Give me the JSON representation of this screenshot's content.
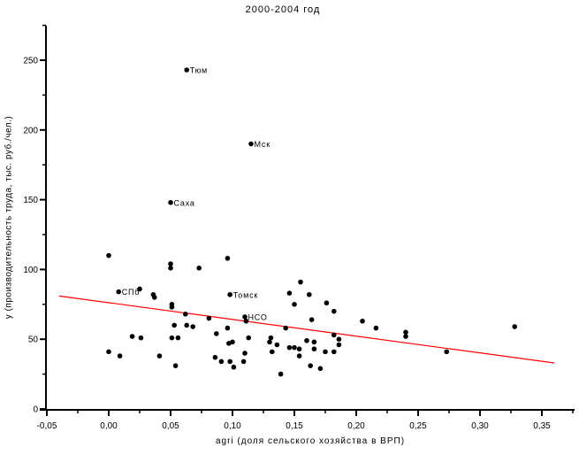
{
  "title": "2000-2004 год",
  "colors": {
    "background": "#ffffff",
    "point": "#000000",
    "axis": "#000000",
    "trend_line": "#ff0000",
    "text": "#000000"
  },
  "axes": {
    "x": {
      "label": "agri (доля сельского хозяйства в ВРП)",
      "min": -0.055,
      "max": 0.377,
      "major_ticks": [
        -0.05,
        0.0,
        0.05,
        0.1,
        0.15,
        0.2,
        0.25,
        0.3,
        0.35
      ],
      "major_tick_labels": [
        "-0,05",
        "0,00",
        "0,05",
        "0,10",
        "0,15",
        "0,20",
        "0,25",
        "0,30",
        "0,35"
      ],
      "minor_ticks": [
        -0.025,
        0.025,
        0.075,
        0.125,
        0.175,
        0.225,
        0.275,
        0.325,
        0.375
      ]
    },
    "y": {
      "label": "у (производительность труда, тыс. руб./чел.)",
      "min": 0,
      "max": 275,
      "major_ticks": [
        0,
        50,
        100,
        150,
        200,
        250
      ],
      "major_tick_labels": [
        "0",
        "50",
        "100",
        "150",
        "200",
        "250"
      ],
      "minor_ticks": [
        25,
        75,
        125,
        175,
        225,
        275
      ]
    }
  },
  "chart_data": {
    "type": "scatter",
    "title": "2000-2004 год",
    "xlabel": "agri (доля сельского хозяйства в ВРП)",
    "ylabel": "у (производительность труда, тыс. руб./чел.)",
    "xlim": [
      -0.055,
      0.377
    ],
    "ylim": [
      0,
      275
    ],
    "grid": false,
    "legend": false,
    "trend_line": {
      "x1": -0.04,
      "y1": 81,
      "x2": 0.36,
      "y2": 33,
      "color": "#ff0000"
    },
    "points": [
      {
        "x": 0.063,
        "y": 243,
        "label": "Тюм"
      },
      {
        "x": 0.115,
        "y": 190,
        "label": "Мск"
      },
      {
        "x": 0.05,
        "y": 148,
        "label": "Саха"
      },
      {
        "x": 0.008,
        "y": 84,
        "label": "СПб"
      },
      {
        "x": 0.098,
        "y": 82,
        "label": "Томск"
      },
      {
        "x": 0.11,
        "y": 66,
        "label": "НСО"
      },
      {
        "x": 0.0,
        "y": 110
      },
      {
        "x": 0.05,
        "y": 104
      },
      {
        "x": 0.05,
        "y": 101
      },
      {
        "x": 0.073,
        "y": 101
      },
      {
        "x": 0.096,
        "y": 108
      },
      {
        "x": 0.025,
        "y": 86
      },
      {
        "x": 0.036,
        "y": 82
      },
      {
        "x": 0.037,
        "y": 80
      },
      {
        "x": 0.051,
        "y": 75
      },
      {
        "x": 0.051,
        "y": 73
      },
      {
        "x": 0.062,
        "y": 68
      },
      {
        "x": 0.081,
        "y": 65
      },
      {
        "x": 0.155,
        "y": 91
      },
      {
        "x": 0.146,
        "y": 83
      },
      {
        "x": 0.162,
        "y": 82
      },
      {
        "x": 0.15,
        "y": 75
      },
      {
        "x": 0.176,
        "y": 76
      },
      {
        "x": 0.182,
        "y": 70
      },
      {
        "x": 0.111,
        "y": 63
      },
      {
        "x": 0.205,
        "y": 63
      },
      {
        "x": 0.216,
        "y": 58
      },
      {
        "x": 0.164,
        "y": 64
      },
      {
        "x": 0.143,
        "y": 58
      },
      {
        "x": 0.053,
        "y": 60
      },
      {
        "x": 0.063,
        "y": 60
      },
      {
        "x": 0.068,
        "y": 59
      },
      {
        "x": 0.019,
        "y": 52
      },
      {
        "x": 0.026,
        "y": 51
      },
      {
        "x": 0.051,
        "y": 51
      },
      {
        "x": 0.056,
        "y": 51
      },
      {
        "x": 0.0,
        "y": 41
      },
      {
        "x": 0.009,
        "y": 38
      },
      {
        "x": 0.041,
        "y": 38
      },
      {
        "x": 0.054,
        "y": 31
      },
      {
        "x": 0.086,
        "y": 37
      },
      {
        "x": 0.087,
        "y": 54
      },
      {
        "x": 0.096,
        "y": 58
      },
      {
        "x": 0.097,
        "y": 47
      },
      {
        "x": 0.1,
        "y": 48
      },
      {
        "x": 0.091,
        "y": 34
      },
      {
        "x": 0.098,
        "y": 34
      },
      {
        "x": 0.101,
        "y": 30
      },
      {
        "x": 0.109,
        "y": 34
      },
      {
        "x": 0.11,
        "y": 40
      },
      {
        "x": 0.113,
        "y": 51
      },
      {
        "x": 0.131,
        "y": 51
      },
      {
        "x": 0.13,
        "y": 48
      },
      {
        "x": 0.136,
        "y": 46
      },
      {
        "x": 0.132,
        "y": 41
      },
      {
        "x": 0.146,
        "y": 44
      },
      {
        "x": 0.15,
        "y": 44
      },
      {
        "x": 0.154,
        "y": 43
      },
      {
        "x": 0.154,
        "y": 38
      },
      {
        "x": 0.16,
        "y": 49
      },
      {
        "x": 0.166,
        "y": 48
      },
      {
        "x": 0.166,
        "y": 43
      },
      {
        "x": 0.175,
        "y": 41
      },
      {
        "x": 0.182,
        "y": 53
      },
      {
        "x": 0.186,
        "y": 50
      },
      {
        "x": 0.186,
        "y": 46
      },
      {
        "x": 0.182,
        "y": 41
      },
      {
        "x": 0.139,
        "y": 25
      },
      {
        "x": 0.163,
        "y": 31
      },
      {
        "x": 0.171,
        "y": 29
      },
      {
        "x": 0.24,
        "y": 55
      },
      {
        "x": 0.24,
        "y": 52
      },
      {
        "x": 0.273,
        "y": 41
      },
      {
        "x": 0.328,
        "y": 59
      }
    ]
  }
}
